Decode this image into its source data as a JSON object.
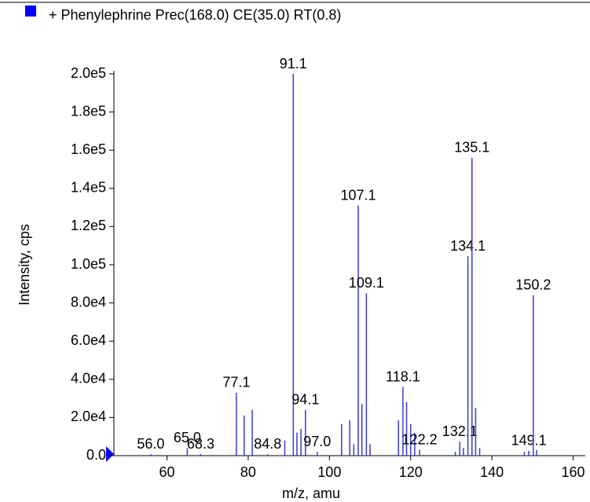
{
  "chart_data": {
    "type": "stem",
    "legend": "+ Phenylephrine Prec(168.0) CE(35.0) RT(0.8)",
    "legend_color": "#0000ff",
    "color": "#3a3ad0",
    "x_label": "m/z, amu",
    "y_label": "Intensity, cps",
    "xlim": [
      45,
      163
    ],
    "ylim": [
      0,
      200000
    ],
    "xticks": [
      60,
      80,
      100,
      120,
      140,
      160
    ],
    "yticks": [
      {
        "value": 0,
        "label": "0.0"
      },
      {
        "value": 20000,
        "label": "2.0e4"
      },
      {
        "value": 40000,
        "label": "4.0e4"
      },
      {
        "value": 60000,
        "label": "6.0e4"
      },
      {
        "value": 80000,
        "label": "8.0e4"
      },
      {
        "value": 100000,
        "label": "1.0e5"
      },
      {
        "value": 120000,
        "label": "1.2e5"
      },
      {
        "value": 140000,
        "label": "1.4e5"
      },
      {
        "value": 160000,
        "label": "1.6e5"
      },
      {
        "value": 180000,
        "label": "1.8e5"
      },
      {
        "value": 200000,
        "label": "2.0e5"
      }
    ],
    "x": [
      56.0,
      65.0,
      68.3,
      77.1,
      79.0,
      81.0,
      84.8,
      89.0,
      91.1,
      92.0,
      93.0,
      94.1,
      97.0,
      103.0,
      105.0,
      106.0,
      107.1,
      108.0,
      109.1,
      110.0,
      117.0,
      118.1,
      119.0,
      120.0,
      121.0,
      122.2,
      131.0,
      132.1,
      133.0,
      134.1,
      135.1,
      136.0,
      137.0,
      148.0,
      149.1,
      150.2,
      151.0
    ],
    "values": [
      800,
      4000,
      800,
      33000,
      21000,
      24000,
      800,
      8000,
      200000,
      12000,
      14000,
      24000,
      2000,
      16500,
      18500,
      6000,
      131000,
      27000,
      85000,
      6000,
      18500,
      36000,
      28000,
      16500,
      12000,
      3000,
      2000,
      7400,
      4000,
      104500,
      156000,
      25000,
      4000,
      2000,
      2500,
      84000,
      3000
    ],
    "peak_labels": [
      "56.0",
      "65.0",
      "68.3",
      "77.1",
      null,
      null,
      "84.8",
      null,
      "91.1",
      null,
      null,
      "94.1",
      "97.0",
      null,
      null,
      null,
      "107.1",
      null,
      "109.1",
      null,
      null,
      "118.1",
      null,
      null,
      null,
      "122.2",
      null,
      "132.1",
      null,
      "134.1",
      "135.1",
      null,
      null,
      null,
      "149.1",
      "150.2",
      null
    ]
  }
}
